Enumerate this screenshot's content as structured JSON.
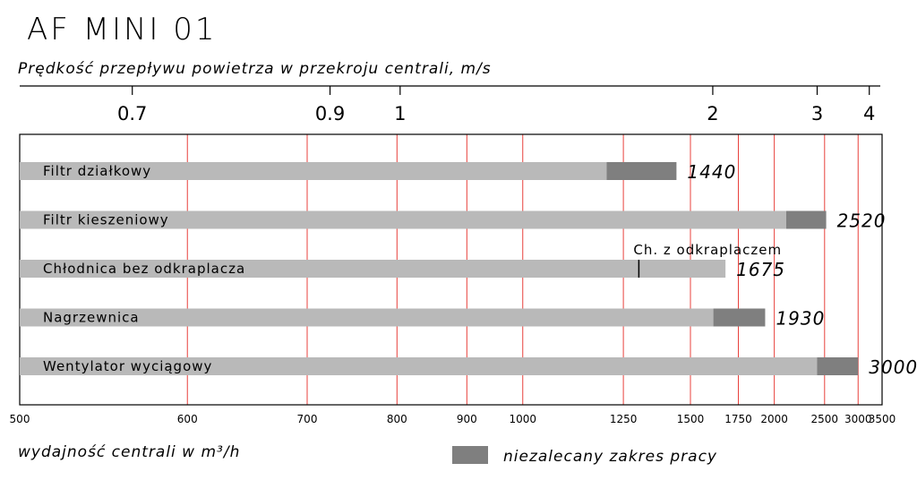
{
  "chart_data": {
    "type": "bar",
    "title": "AF MINI 01",
    "top_axis": {
      "label": "Prędkość przepływu powietrza w przekroju centrali, m/s",
      "ticks": [
        {
          "label": "0.7",
          "flow": 563
        },
        {
          "label": "0.9",
          "flow": 723
        },
        {
          "label": "1",
          "flow": 804
        },
        {
          "label": "2",
          "flow": 1607
        },
        {
          "label": "3",
          "flow": 2411
        },
        {
          "label": "4",
          "flow": 3214
        }
      ]
    },
    "x_axis": {
      "label": "wydajność centrali w m³/h",
      "ticks": [
        500,
        600,
        700,
        800,
        900,
        1000,
        1250,
        1500,
        1750,
        2000,
        2500,
        3000,
        3500
      ],
      "tick_labels": [
        "500",
        "600",
        "700",
        "800",
        "900",
        "1000",
        "1250",
        "1500",
        "1750",
        "2000",
        "2500",
        "3000",
        "3500"
      ],
      "xlim": [
        500,
        3500
      ],
      "scale": "reciprocal"
    },
    "gridlines": [
      600,
      700,
      800,
      900,
      1000,
      1250,
      1500,
      1750,
      2000,
      2500,
      3000
    ],
    "series": [
      {
        "name": "Filtr działkowy",
        "recommended_max": 1200,
        "max": 1440,
        "value_label": "1440"
      },
      {
        "name": "Filtr kieszeniowy",
        "recommended_max": 2100,
        "max": 2520,
        "value_label": "2520"
      },
      {
        "name": "Chłodnica bez odkraplacza",
        "recommended_max": 1675,
        "max": 1675,
        "value_label": "1675",
        "marker": 1300,
        "marker_label": "Ch. z odkraplaczem"
      },
      {
        "name": "Nagrzewnica",
        "recommended_max": 1610,
        "max": 1930,
        "value_label": "1930"
      },
      {
        "name": "Wentylator wyciągowy",
        "recommended_max": 2410,
        "max": 3000,
        "value_label": "3000"
      }
    ],
    "legend": {
      "label": "niezalecany zakres pracy",
      "placement": "bottom-right"
    },
    "colors": {
      "bar": "#b9b9b9",
      "not_recommended": "#7f7f7f",
      "grid": "#e8413c",
      "frame": "#000000"
    }
  }
}
